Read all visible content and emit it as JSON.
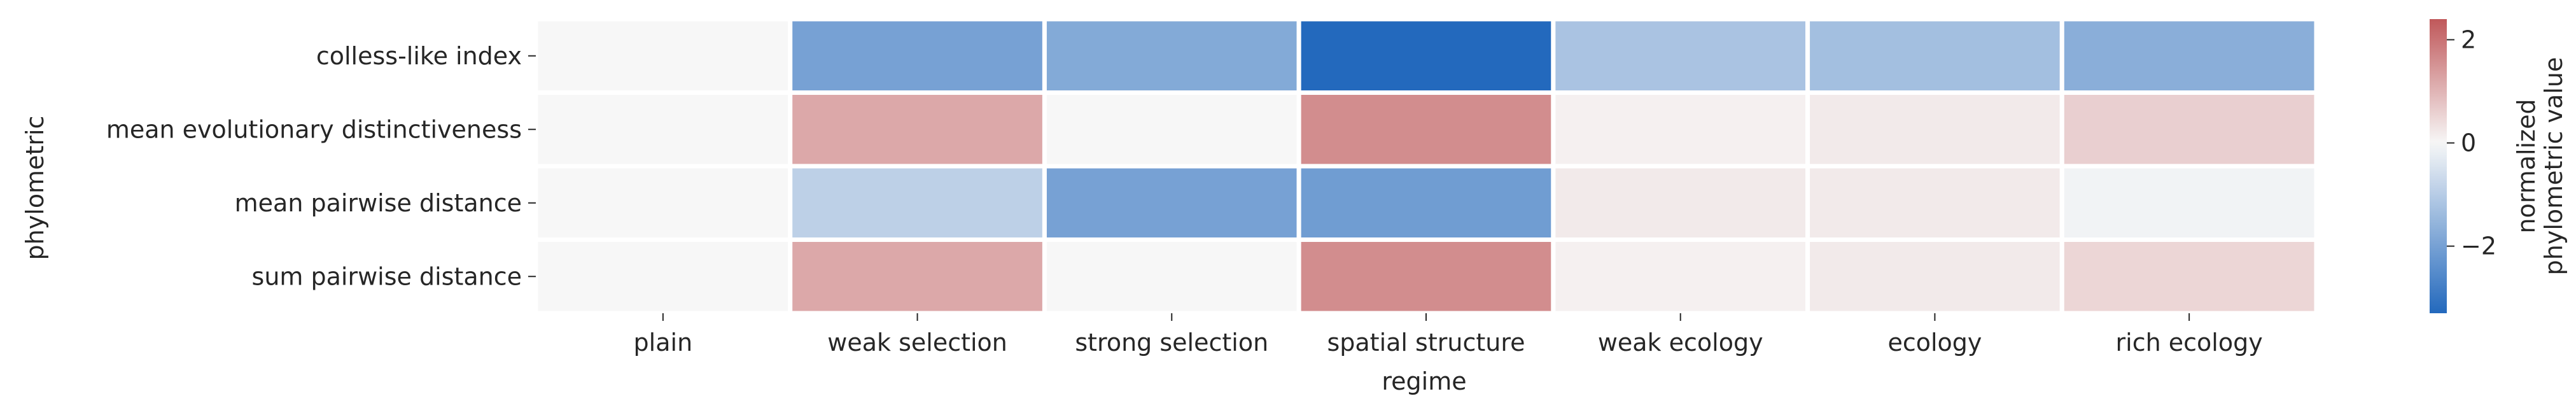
{
  "chart_data": {
    "type": "heatmap",
    "title": "",
    "xlabel": "regime",
    "ylabel": "phylometric",
    "x_categories": [
      "plain",
      "weak selection",
      "strong selection",
      "spatial structure",
      "weak ecology",
      "ecology",
      "rich ecology"
    ],
    "y_categories": [
      "colless-like index",
      "mean evolutionary distinctiveness",
      "mean pairwise distance",
      "sum pairwise distance"
    ],
    "values": [
      [
        0.0,
        -2.0,
        -1.8,
        -3.3,
        -1.2,
        -1.3,
        -1.7
      ],
      [
        0.0,
        1.2,
        0.0,
        1.6,
        0.1,
        0.2,
        0.6
      ],
      [
        0.0,
        -0.9,
        -2.0,
        -2.1,
        0.2,
        0.2,
        -0.1
      ],
      [
        0.0,
        1.2,
        0.0,
        1.6,
        0.1,
        0.2,
        0.5
      ]
    ],
    "colorbar": {
      "label_lines": [
        "normalized",
        "phylometric value"
      ],
      "ticks": [
        2,
        0,
        -2
      ],
      "vmin": -3.3,
      "vmax": 2.4,
      "colors": {
        "low": "#2369bd",
        "mid": "#f7f7f7",
        "high": "#c0585a"
      }
    },
    "grid": false,
    "legend": "colorbar-right"
  }
}
